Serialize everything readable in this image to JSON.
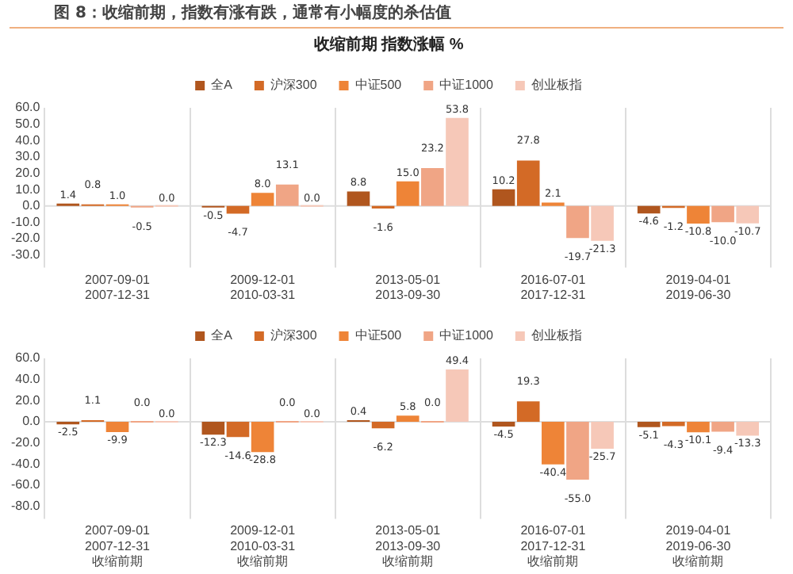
{
  "chart_data": [
    {
      "type": "bar",
      "title": "收缩前期 指数涨幅 %",
      "annotations": [
        "图 8：收缩前期，指数有涨有跌，通常有小幅度的杀估值"
      ],
      "categories": [
        "2007-09-01\n2007-12-31",
        "2009-12-01\n2010-03-31",
        "2013-05-01\n2013-09-30",
        "2016-07-01\n2017-12-31",
        "2019-04-01\n2019-06-30"
      ],
      "series": [
        {
          "name": "全A",
          "color": "#b0561e",
          "values": [
            1.4,
            -0.5,
            8.8,
            10.2,
            -4.6
          ],
          "value_labels": [
            "1.4",
            "-0.5",
            "8.8",
            "10.2",
            "-4.6"
          ]
        },
        {
          "name": "沪深300",
          "color": "#d36a26",
          "values": [
            0.8,
            -4.7,
            -1.6,
            27.8,
            -1.2
          ],
          "value_labels": [
            "0.8",
            "-4.7",
            "-1.6",
            "27.8",
            "-1.2"
          ]
        },
        {
          "name": "中证500",
          "color": "#ee8437",
          "values": [
            1.0,
            8.0,
            15.0,
            2.1,
            -10.8
          ],
          "value_labels": [
            "1.0",
            "8.0",
            "15.0",
            "2.1",
            "-10.8"
          ]
        },
        {
          "name": "中证1000",
          "color": "#f0a585",
          "values": [
            -0.5,
            13.1,
            23.2,
            -19.7,
            -10.0
          ],
          "value_labels": [
            "-0.5",
            "13.1",
            "23.2",
            "-19.7",
            "-10.0"
          ]
        },
        {
          "name": "创业板指",
          "color": "#f6c8b8",
          "values": [
            0.0,
            0.0,
            53.8,
            -21.3,
            -10.7
          ],
          "value_labels": [
            "0.0",
            "0.0",
            "53.8",
            "-21.3",
            "-10.7"
          ]
        }
      ],
      "ylim": [
        -30,
        60
      ],
      "yticks": [
        {
          "value": 60,
          "label": "60.0"
        },
        {
          "value": 50,
          "label": "50.0"
        },
        {
          "value": 40,
          "label": "40.0"
        },
        {
          "value": 30,
          "label": "30.0"
        },
        {
          "value": 20,
          "label": "20.0"
        },
        {
          "value": 10,
          "label": "10.0"
        },
        {
          "value": 0,
          "label": "0.0"
        },
        {
          "value": -10,
          "label": "-10.0"
        },
        {
          "value": -20,
          "label": "-20.0"
        },
        {
          "value": -30,
          "label": "-30.0"
        }
      ],
      "grid": "x",
      "legend": "top",
      "ref_lines": [
        {
          "axis": "y",
          "value": 0,
          "color": "#dddddd"
        }
      ]
    },
    {
      "type": "bar",
      "categories": [
        "2007-09-01\n2007-12-31\n收缩前期",
        "2009-12-01\n2010-03-31\n收缩前期",
        "2013-05-01\n2013-09-30\n收缩前期",
        "2016-07-01\n2017-12-31\n收缩前期",
        "2019-04-01\n2019-06-30\n收缩前期"
      ],
      "series": [
        {
          "name": "全A",
          "color": "#b0561e",
          "values": [
            -2.5,
            -12.3,
            0.4,
            -4.5,
            -5.1
          ],
          "value_labels": [
            "-2.5",
            "-12.3",
            "0.4",
            "-4.5",
            "-5.1"
          ]
        },
        {
          "name": "沪深300",
          "color": "#d36a26",
          "values": [
            1.1,
            -14.6,
            -6.2,
            19.3,
            -4.3
          ],
          "value_labels": [
            "1.1",
            "-14.6",
            "-6.2",
            "19.3",
            "-4.3"
          ]
        },
        {
          "name": "中证500",
          "color": "#ee8437",
          "values": [
            -9.9,
            -28.8,
            5.8,
            -40.4,
            -10.1
          ],
          "value_labels": [
            "-9.9",
            "-28.8",
            "5.8",
            "-40.4",
            "-10.1"
          ]
        },
        {
          "name": "中证1000",
          "color": "#f0a585",
          "values": [
            0.0,
            0.0,
            0.0,
            -55.0,
            -9.4
          ],
          "value_labels": [
            "0.0",
            "0.0",
            "0.0",
            "-55.0",
            "-9.4"
          ]
        },
        {
          "name": "创业板指",
          "color": "#f6c8b8",
          "values": [
            0.0,
            0.0,
            49.4,
            -25.7,
            -13.3
          ],
          "value_labels": [
            "0.0",
            "0.0",
            "49.4",
            "-25.7",
            "-13.3"
          ]
        }
      ],
      "ylim": [
        -80,
        60
      ],
      "yticks": [
        {
          "value": 60,
          "label": "60.0"
        },
        {
          "value": 40,
          "label": "40.0"
        },
        {
          "value": 20,
          "label": "20.0"
        },
        {
          "value": 0,
          "label": "0.0"
        },
        {
          "value": -20,
          "label": "-20.0"
        },
        {
          "value": -40,
          "label": "-40.0"
        },
        {
          "value": -60,
          "label": "-60.0"
        },
        {
          "value": -80,
          "label": "-80.0"
        }
      ],
      "grid": "x",
      "legend": "top",
      "ref_lines": [
        {
          "axis": "y",
          "value": 0,
          "color": "#dddddd"
        }
      ]
    }
  ]
}
